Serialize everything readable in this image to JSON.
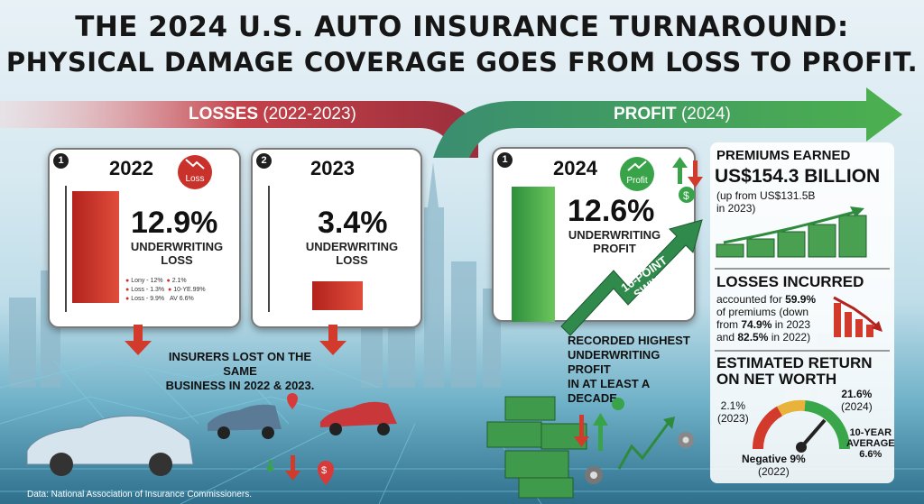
{
  "title": {
    "line1": "THE 2024 U.S. AUTO INSURANCE TURNAROUND:",
    "line2": "PHYSICAL DAMAGE COVERAGE GOES FROM LOSS TO PROFIT."
  },
  "banner": {
    "losses": "LOSSES",
    "losses_years": "(2022-2023)",
    "profit": "PROFIT",
    "profit_years": "(2024)"
  },
  "card_2022": {
    "num": "1",
    "year": "2022",
    "badge": "Loss",
    "value": "12.9%",
    "label1": "UNDERWRITING",
    "label2": "LOSS",
    "legend": [
      {
        "a": "Lony - 12%",
        "b": "2.1%"
      },
      {
        "a": "Loss - 1.3%",
        "b": "10-YE.99%"
      },
      {
        "a": "Loss - 9.9%",
        "b": "AV 6.6%"
      }
    ]
  },
  "card_2023": {
    "num": "2",
    "year": "2023",
    "value": "3.4%",
    "label1": "UNDERWRITING",
    "label2": "LOSS"
  },
  "losses_caption": {
    "line1": "INSURERS LOST ON THE SAME",
    "line2": "BUSINESS IN 2022 & 2023."
  },
  "card_2024": {
    "num": "1",
    "year": "2024",
    "badge": "Profit",
    "value": "12.6%",
    "label1": "UNDERWRITING",
    "label2": "PROFIT",
    "swing1": "16-POINT",
    "swing2": "SWING"
  },
  "profit_caption": {
    "line1": "RECORDED HIGHEST",
    "line2": "UNDERWRITING PROFIT",
    "line3": "IN AT LEAST A DECADE."
  },
  "premiums": {
    "title": "PREMIUMS EARNED",
    "value": "US$154.3 BILLION",
    "note1": "(up from US$131.5B",
    "note2": "in 2023)"
  },
  "losses_incurred": {
    "title": "LOSSES INCURRED",
    "l1a": "accounted for ",
    "l1b": "59.9%",
    "l2": "of premiums (down",
    "l3a": "from ",
    "l3b": "74.9%",
    "l3c": " in 2023",
    "l4a": "and ",
    "l4b": "82.5%",
    "l4c": " in 2022)"
  },
  "return": {
    "title1": "ESTIMATED RETURN",
    "title2": "ON NET WORTH",
    "v2023": "2.1%",
    "y2023": "(2023)",
    "v2024": "21.6%",
    "y2024": "(2024)",
    "avg1": "10-YEAR",
    "avg2": "AVERAGE",
    "avg3": "6.6%",
    "neg": "Negative 9%",
    "negy": "(2022)"
  },
  "source": "Data: National Association of Insurance Commissioners.",
  "colors": {
    "loss": "#d0342c",
    "profit": "#3aa64a",
    "banner_loss": "#c4424a",
    "banner_profit": "#3c9c55"
  },
  "icons": {
    "loss_badge": "down-trend-icon",
    "profit_badge": "up-trend-icon",
    "dollar": "dollar-icon",
    "gear": "gear-icon",
    "location": "location-pin-icon"
  }
}
